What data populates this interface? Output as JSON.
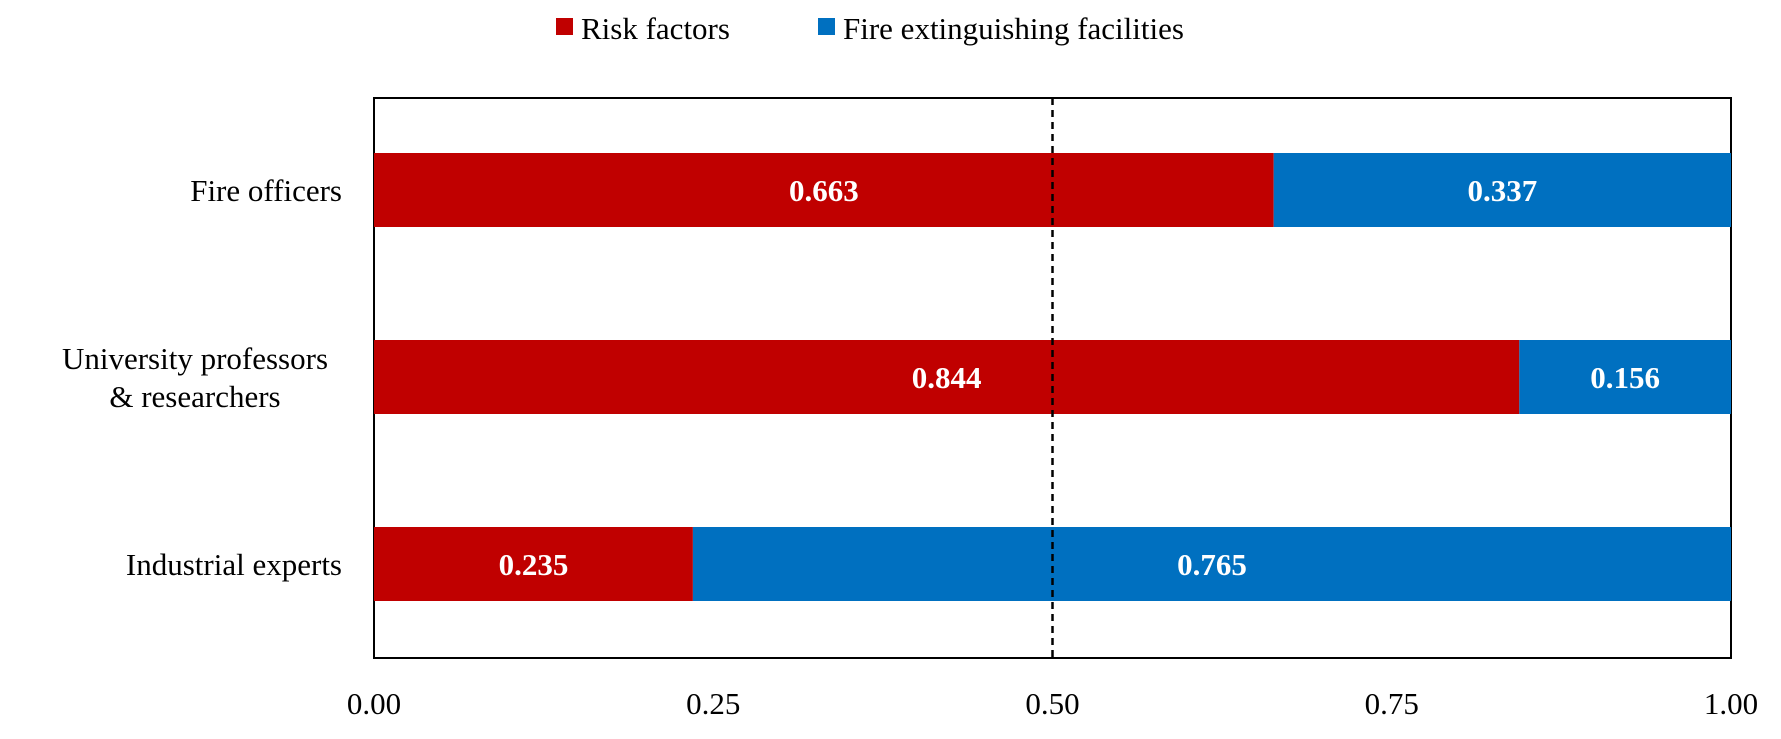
{
  "chart_data": {
    "type": "bar",
    "orientation": "horizontal",
    "stacked": true,
    "normalized": true,
    "categories": [
      "Fire officers",
      "University professors & researchers",
      "Industrial experts"
    ],
    "category_label_lines": [
      [
        "Fire officers"
      ],
      [
        "University professors",
        "& researchers"
      ],
      [
        "Industrial experts"
      ]
    ],
    "series": [
      {
        "name": "Risk factors",
        "color": "#c00000",
        "values": [
          0.663,
          0.844,
          0.235
        ]
      },
      {
        "name": "Fire extinguishing facilities",
        "color": "#0070c0",
        "values": [
          0.337,
          0.156,
          0.765
        ]
      }
    ],
    "data_labels": [
      [
        "0.663",
        "0.844",
        "0.235"
      ],
      [
        "0.337",
        "0.156",
        "0.765"
      ]
    ],
    "xlim": [
      0,
      1
    ],
    "xticks": [
      0,
      0.25,
      0.5,
      0.75,
      1
    ],
    "xtick_labels": [
      "0.00",
      "0.25",
      "0.50",
      "0.75",
      "1.00"
    ],
    "reference_line": {
      "x": 0.5,
      "style": "dashed"
    },
    "legend_position": "top-center",
    "title": "",
    "xlabel": "",
    "ylabel": "",
    "grid": false
  }
}
